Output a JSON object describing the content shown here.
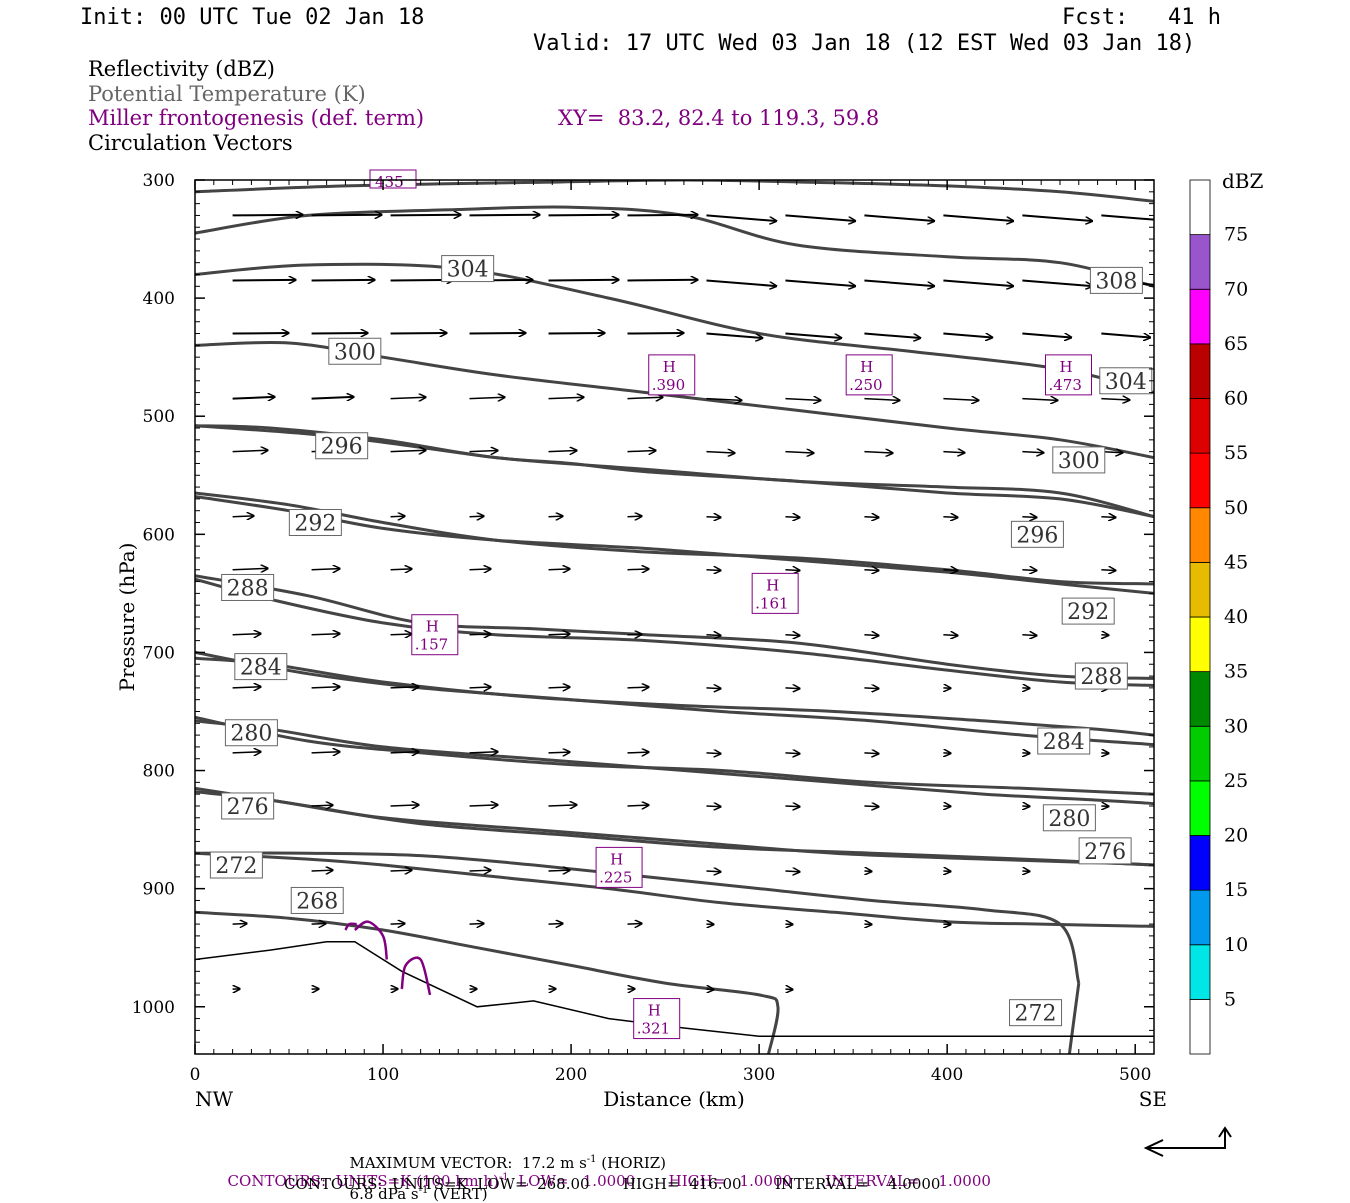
{
  "header": {
    "init": "Init: 00 UTC Tue 02 Jan 18",
    "fcst": "Fcst:   41 h",
    "valid": "Valid: 17 UTC Wed 03 Jan 18 (12 EST Wed 03 Jan 18)"
  },
  "legend": {
    "line1": "Reflectivity (dBZ)",
    "line2": "Potential Temperature (K)",
    "line3": "Miller frontogenesis (def. term)",
    "xy": "XY=  83.2, 82.4 to 119.3, 59.8",
    "line4": "Circulation Vectors"
  },
  "colors": {
    "theta": "#444444",
    "frontogenesis": "#800080",
    "terrain": "#000000"
  },
  "chart_data": {
    "type": "contour",
    "xlabel": "Distance (km)",
    "ylabel": "Pressure (hPa)",
    "xlim": [
      0,
      510
    ],
    "ylim": [
      300,
      1040
    ],
    "x_ticks": [
      0,
      100,
      200,
      300,
      400,
      500
    ],
    "y_ticks": [
      300,
      400,
      500,
      600,
      700,
      800,
      900,
      1000
    ],
    "x_end_labels": {
      "left": "NW",
      "right": "SE"
    },
    "theta_contours": [
      {
        "label": "308",
        "x": [
          0,
          80,
          180,
          260,
          330,
          400,
          460,
          510
        ],
        "p": [
          310,
          305,
          302,
          300,
          302,
          305,
          310,
          318
        ],
        "label_at": [
          490,
          385
        ]
      },
      {
        "label": "304",
        "x": [
          0,
          60,
          140,
          200,
          260,
          320,
          400,
          460,
          510
        ],
        "p": [
          345,
          330,
          325,
          323,
          330,
          355,
          365,
          370,
          390
        ],
        "label_at": [
          145,
          375
        ]
      },
      {
        "label": "304",
        "x": [
          0,
          60,
          140,
          220,
          300,
          380,
          460,
          510
        ],
        "p": [
          380,
          372,
          375,
          400,
          430,
          445,
          460,
          480
        ],
        "label_at": [
          495,
          470
        ]
      },
      {
        "label": "300",
        "x": [
          0,
          50,
          100,
          160,
          240,
          320,
          400,
          460,
          510
        ],
        "p": [
          440,
          438,
          450,
          465,
          480,
          495,
          510,
          520,
          535
        ],
        "label_at": [
          85,
          445
        ]
      },
      {
        "label": "300",
        "x": [
          0,
          40,
          100,
          160,
          240,
          320,
          400,
          460,
          510
        ],
        "p": [
          508,
          510,
          520,
          535,
          545,
          555,
          560,
          565,
          585
        ],
        "label_at": [
          470,
          537
        ]
      },
      {
        "label": "296",
        "x": [
          0,
          60,
          100,
          160,
          200,
          240,
          320,
          400,
          460,
          510
        ],
        "p": [
          508,
          515,
          522,
          535,
          540,
          547,
          555,
          565,
          570,
          585
        ],
        "label_at": [
          78,
          525
        ]
      },
      {
        "label": "296",
        "x": [
          0,
          50,
          100,
          160,
          240,
          320,
          400,
          460,
          510
        ],
        "p": [
          565,
          575,
          590,
          605,
          615,
          620,
          630,
          640,
          642
        ],
        "label_at": [
          448,
          600
        ]
      },
      {
        "label": "292",
        "x": [
          0,
          50,
          100,
          160,
          240,
          320,
          400,
          460,
          510
        ],
        "p": [
          568,
          580,
          595,
          605,
          612,
          622,
          632,
          642,
          650
        ],
        "label_at": [
          64,
          590
        ]
      },
      {
        "label": "292",
        "x": [
          0,
          60,
          120,
          180,
          240,
          320,
          400,
          460,
          510
        ],
        "p": [
          635,
          652,
          675,
          680,
          685,
          692,
          710,
          720,
          722
        ],
        "label_at": [
          475,
          665
        ]
      },
      {
        "label": "288",
        "x": [
          0,
          40,
          100,
          160,
          240,
          320,
          400,
          460,
          510
        ],
        "p": [
          638,
          655,
          675,
          685,
          690,
          700,
          715,
          725,
          728
        ],
        "label_at": [
          28,
          645
        ]
      },
      {
        "label": "288",
        "x": [
          0,
          60,
          120,
          200,
          280,
          360,
          440,
          510
        ],
        "p": [
          700,
          718,
          730,
          740,
          750,
          758,
          770,
          778
        ],
        "label_at": [
          482,
          720
        ]
      },
      {
        "label": "284",
        "x": [
          0,
          40,
          100,
          180,
          260,
          340,
          420,
          480,
          510
        ],
        "p": [
          705,
          710,
          725,
          738,
          745,
          750,
          758,
          765,
          770
        ],
        "label_at": [
          35,
          712
        ]
      },
      {
        "label": "284",
        "x": [
          0,
          60,
          120,
          200,
          280,
          360,
          440,
          510
        ],
        "p": [
          755,
          775,
          785,
          795,
          800,
          810,
          815,
          820
        ],
        "label_at": [
          462,
          775
        ]
      },
      {
        "label": "280",
        "x": [
          0,
          40,
          100,
          180,
          260,
          340,
          420,
          480,
          510
        ],
        "p": [
          758,
          765,
          780,
          790,
          800,
          810,
          820,
          825,
          828
        ],
        "label_at": [
          30,
          768
        ]
      },
      {
        "label": "280",
        "x": [
          0,
          60,
          120,
          200,
          280,
          360,
          440,
          510
        ],
        "p": [
          815,
          830,
          845,
          855,
          865,
          870,
          875,
          880
        ],
        "label_at": [
          465,
          840
        ]
      },
      {
        "label": "276",
        "x": [
          0,
          40,
          100,
          180,
          260,
          340,
          420,
          480,
          510
        ],
        "p": [
          818,
          825,
          840,
          850,
          860,
          870,
          875,
          878,
          880
        ],
        "label_at": [
          28,
          830
        ]
      },
      {
        "label": "276",
        "x": [
          0,
          60,
          100,
          160,
          220,
          280,
          340,
          400,
          450,
          510
        ],
        "p": [
          870,
          875,
          880,
          890,
          900,
          912,
          920,
          928,
          930,
          932
        ],
        "label_at": [
          484,
          868
        ]
      },
      {
        "label": "272",
        "x": [
          0,
          60,
          120,
          180,
          240,
          300,
          360,
          420,
          460,
          470
        ],
        "p": [
          870,
          870,
          872,
          880,
          890,
          900,
          910,
          918,
          930,
          980
        ],
        "label_at": [
          22,
          880
        ]
      },
      {
        "label": "272",
        "x": [
          470,
          465
        ],
        "p": [
          980,
          1040
        ],
        "label_at": [
          447,
          1005
        ]
      },
      {
        "label": "268",
        "x": [
          0,
          50,
          100,
          150,
          200,
          250,
          300,
          310,
          305
        ],
        "p": [
          920,
          925,
          935,
          950,
          965,
          980,
          990,
          1000,
          1040
        ],
        "label_at": [
          65,
          910
        ]
      }
    ],
    "terrain": {
      "x": [
        0,
        40,
        70,
        85,
        110,
        150,
        180,
        220,
        260,
        300,
        510
      ],
      "p": [
        960,
        952,
        945,
        945,
        970,
        1000,
        995,
        1010,
        1018,
        1025,
        1025
      ]
    },
    "frontogenesis_maxima": [
      {
        "label": "H",
        "value": ".390",
        "x": 253,
        "p": 465
      },
      {
        "label": "H",
        "value": ".250",
        "x": 358,
        "p": 465
      },
      {
        "label": "H",
        "value": ".473",
        "x": 464,
        "p": 465
      },
      {
        "label": "H",
        "value": ".161",
        "x": 308,
        "p": 650
      },
      {
        "label": "H",
        "value": ".157",
        "x": 127,
        "p": 685
      },
      {
        "label": "H",
        "value": ".225",
        "x": 225,
        "p": 882
      },
      {
        "label": "H",
        "value": ".321",
        "x": 245,
        "p": 1010
      }
    ],
    "top_cut_label": "435",
    "colorbar": {
      "title": "dBZ",
      "levels": [
        "5",
        "10",
        "15",
        "20",
        "25",
        "30",
        "35",
        "40",
        "45",
        "50",
        "55",
        "60",
        "65",
        "70",
        "75"
      ],
      "colors": [
        "#ffffff",
        "#00e6e6",
        "#0099ee",
        "#0000ff",
        "#00ff00",
        "#00cc00",
        "#008800",
        "#ffff00",
        "#e6bb00",
        "#ff8800",
        "#ff0000",
        "#dd0000",
        "#bb0000",
        "#ff00ff",
        "#9955cc",
        "#ffffff"
      ]
    },
    "vector_grid": {
      "x": [
        20,
        62,
        104,
        146,
        188,
        230,
        272,
        314,
        356,
        398,
        440,
        482
      ],
      "p": [
        330,
        380,
        430,
        480,
        530,
        580,
        630,
        680,
        730,
        780,
        830,
        880,
        930,
        980
      ],
      "u": [
        [
          1.0,
          1.0,
          1.0,
          1.0,
          1.0,
          1.0,
          1.0,
          1.0,
          1.0,
          1.0,
          1.0,
          0.9
        ],
        [
          0.9,
          0.9,
          0.9,
          0.9,
          1.0,
          1.0,
          1.0,
          1.0,
          1.0,
          1.0,
          1.0,
          1.0
        ],
        [
          0.8,
          0.8,
          0.8,
          0.8,
          0.8,
          0.8,
          0.8,
          0.8,
          0.8,
          0.7,
          0.7,
          0.7
        ],
        [
          0.6,
          0.6,
          0.5,
          0.5,
          0.5,
          0.5,
          0.5,
          0.5,
          0.5,
          0.5,
          0.5,
          0.4
        ],
        [
          0.5,
          0.5,
          0.5,
          0.4,
          0.4,
          0.4,
          0.4,
          0.4,
          0.4,
          0.3,
          0.3,
          0.3
        ],
        [
          0.3,
          0.3,
          0.2,
          0.2,
          0.2,
          0.2,
          0.2,
          0.2,
          0.2,
          0.2,
          0.2,
          0.2
        ],
        [
          0.5,
          0.4,
          0.3,
          0.3,
          0.3,
          0.3,
          0.2,
          0.2,
          0.2,
          0.2,
          0.2,
          0.2
        ],
        [
          0.4,
          0.4,
          0.3,
          0.3,
          0.3,
          0.2,
          0.2,
          0.2,
          0.2,
          0.2,
          0.2,
          0.1
        ],
        [
          0.4,
          0.4,
          0.4,
          0.3,
          0.3,
          0.3,
          0.2,
          0.2,
          0.2,
          0.1,
          0.1,
          0.1
        ],
        [
          0.4,
          0.4,
          0.4,
          0.4,
          0.3,
          0.3,
          0.2,
          0.2,
          0.2,
          0.1,
          0.1,
          0.1
        ],
        [
          0.3,
          0.3,
          0.4,
          0.4,
          0.4,
          0.3,
          0.2,
          0.2,
          0.2,
          0.1,
          0.1,
          0.1
        ],
        [
          0.3,
          0.3,
          0.3,
          0.3,
          0.3,
          0.2,
          0.2,
          0.2,
          0.1,
          0.1,
          0.1,
          0.05
        ],
        [
          0.2,
          0.2,
          0.2,
          0.2,
          0.2,
          0.2,
          0.1,
          0.1,
          0.1,
          0.1,
          0.05,
          0.05
        ],
        [
          0.1,
          0.1,
          0.1,
          0.1,
          0.1,
          0.1,
          0.1,
          0.1,
          0.05,
          0.05,
          0.05,
          0.05
        ]
      ]
    }
  },
  "footer": {
    "line1a": "MAXIMUM VECTOR:  17.2 m s",
    "line1a_sup": "-1",
    "line1b": " (HORIZ)",
    "line1c": "6.8 dPa s",
    "line1c_sup": "-1",
    "line1d": " (VERT)",
    "line2a": "CONTOURS:  UNITS=K (100 km h)",
    "line2a_sup": "-1",
    "line2b": "  LOW=   1.0000       HIGH=   1.0000       INTERVAL=    1.0000",
    "line3": "CONTOURS:  UNITS=K  LOW=  268.00       HIGH=  416.00       INTERVAL=    4.0000"
  }
}
